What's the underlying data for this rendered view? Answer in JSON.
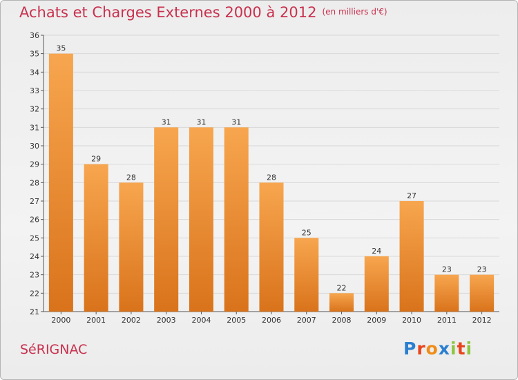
{
  "title": "Achats et Charges Externes 2000 à 2012",
  "subtitle": "(en milliers d'€)",
  "place": "SéRIGNAC",
  "logo": {
    "text": "Proxiti",
    "letters": [
      "P",
      "r",
      "o",
      "x",
      "i",
      "t",
      "i"
    ],
    "colors": [
      "#2a7fd0",
      "#e8431c",
      "#f08c1a",
      "#2a7fd0",
      "#8cc63f",
      "#e8431c",
      "#8cc63f"
    ]
  },
  "colors": {
    "bar_light": "#f7a64f",
    "bar_dark": "#d9731b",
    "title": "#c8314e",
    "grid": "#d8d8d8"
  },
  "chart_data": {
    "type": "bar",
    "categories": [
      "2000",
      "2001",
      "2002",
      "2003",
      "2004",
      "2005",
      "2006",
      "2007",
      "2008",
      "2009",
      "2010",
      "2011",
      "2012"
    ],
    "values": [
      35,
      29,
      28,
      31,
      31,
      31,
      28,
      25,
      22,
      24,
      27,
      23,
      23
    ],
    "ylim": [
      21,
      36
    ],
    "yticks": [
      21,
      22,
      23,
      24,
      25,
      26,
      27,
      28,
      29,
      30,
      31,
      32,
      33,
      34,
      35,
      36
    ],
    "grid": true,
    "data_labels": true
  }
}
